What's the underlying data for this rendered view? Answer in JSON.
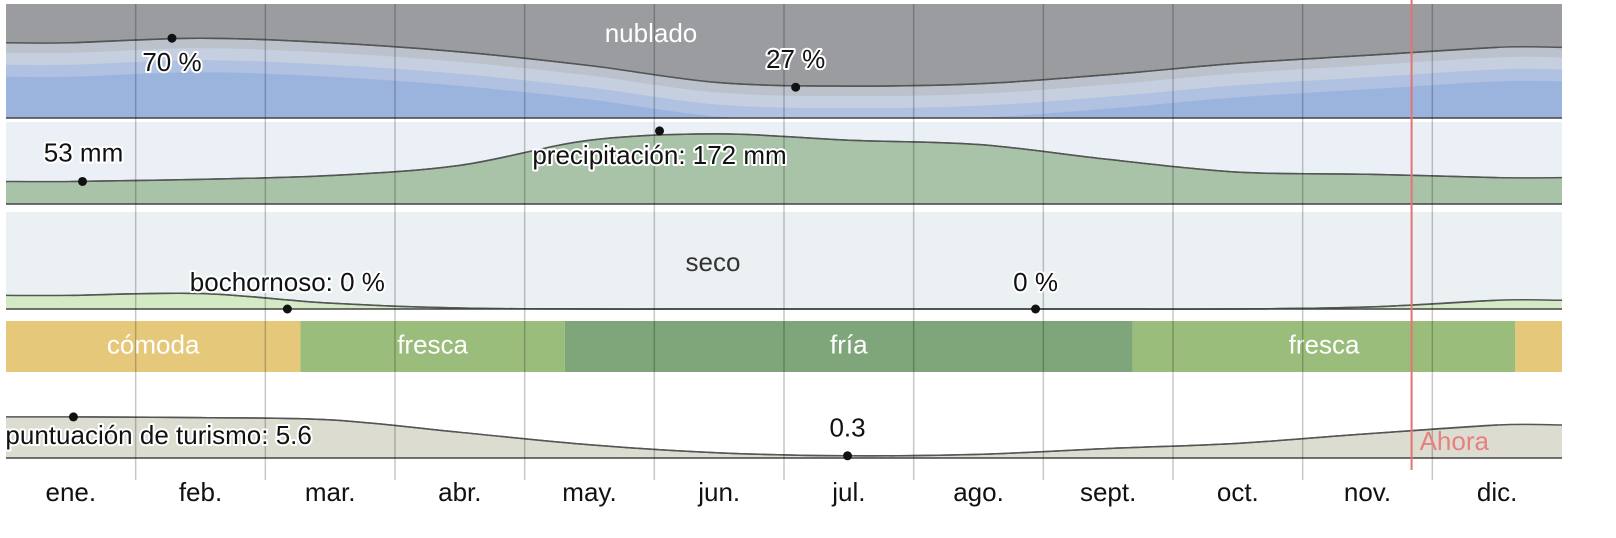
{
  "chart_data": {
    "type": "panels",
    "categories": [
      "ene.",
      "feb.",
      "mar.",
      "abr.",
      "may.",
      "jun.",
      "jul.",
      "ago.",
      "sept.",
      "oct.",
      "nov.",
      "dic."
    ],
    "now": {
      "label": "Ahora",
      "x": 10.84
    },
    "panels": [
      {
        "type": "cloud",
        "title": "nublado",
        "ylim": [
          0,
          100
        ],
        "color": "#9a9ca0",
        "values": [
          66,
          70,
          66,
          58,
          46,
          31,
          28,
          30,
          38,
          48,
          55,
          62
        ],
        "annotations": [
          {
            "label": "70 %",
            "value": 70,
            "x": 1.28
          },
          {
            "label": "27 %",
            "value": 27,
            "x": 6.09
          }
        ]
      },
      {
        "type": "area",
        "ylim": [
          0,
          193
        ],
        "color": "#a9c3a9",
        "background": "#eaf0f6",
        "values": [
          53,
          58,
          67,
          91,
          150,
          165,
          150,
          140,
          105,
          75,
          70,
          62
        ],
        "annotations": [
          {
            "label": "53 mm",
            "value": 53,
            "x": 0.59
          },
          {
            "label": "precipitación: 172 mm",
            "value": 172,
            "x": 5.04
          }
        ]
      },
      {
        "type": "area",
        "title": "seco",
        "ylim": [
          0,
          100
        ],
        "color": "#d3eac4",
        "background": "#ebf0f3",
        "values": [
          14,
          16,
          6,
          1,
          0,
          0,
          0,
          0,
          0,
          0,
          2,
          9
        ],
        "annotations": [
          {
            "label": "bochornoso: 0 %",
            "value": 0,
            "x": 2.17
          },
          {
            "label": "0 %",
            "value": 0,
            "x": 7.94
          }
        ]
      },
      {
        "type": "bands",
        "bands": [
          {
            "label": "cómoda",
            "start": 0,
            "end": 2.27,
            "color": "#e5c87a"
          },
          {
            "label": "fresca",
            "start": 2.27,
            "end": 4.31,
            "color": "#9bbd7c"
          },
          {
            "label": "fría",
            "start": 4.31,
            "end": 8.69,
            "color": "#7ea67a"
          },
          {
            "label": "fresca",
            "start": 8.69,
            "end": 11.64,
            "color": "#9bbd7c"
          },
          {
            "label": null,
            "start": 11.64,
            "end": 12,
            "color": "#e5c87a"
          }
        ]
      },
      {
        "type": "area",
        "ylim": [
          0,
          10
        ],
        "color": "#dcdcd0",
        "background": "#ffffff",
        "values": [
          5.6,
          5.5,
          5.2,
          3.5,
          1.8,
          0.7,
          0.3,
          0.5,
          1.3,
          2.0,
          3.3,
          4.5
        ],
        "annotations": [
          {
            "label": "puntuación de turismo: 5.6",
            "value": 5.6,
            "x": 0.52
          },
          {
            "label": "0.3",
            "value": 0.3,
            "x": 6.49
          }
        ]
      }
    ]
  }
}
